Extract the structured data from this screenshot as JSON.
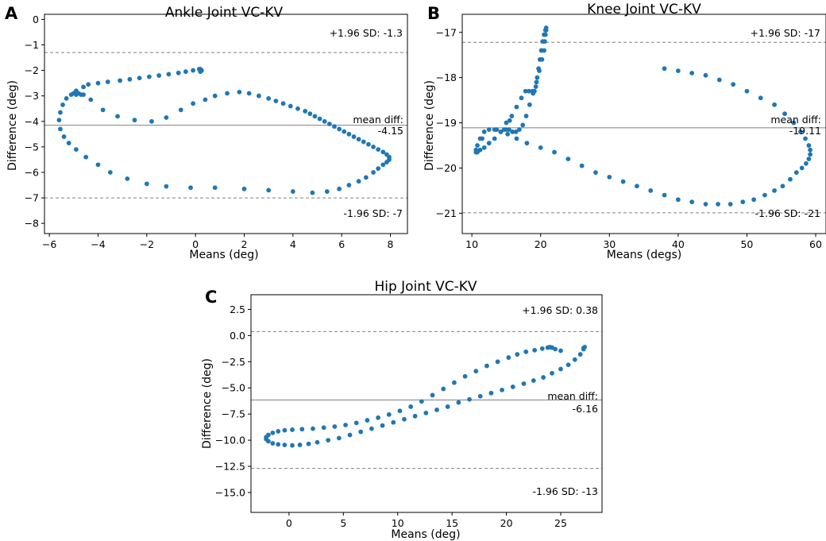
{
  "chart_data": [
    {
      "type": "scatter",
      "panel_label": "A",
      "title": "Ankle Joint VC-KV",
      "xlabel": "Means (deg)",
      "ylabel": "Difference (deg)",
      "xlim": [
        -6.2,
        8.7
      ],
      "ylim": [
        -8.4,
        0.2
      ],
      "xticks": [
        -6,
        -4,
        -2,
        0,
        2,
        4,
        6,
        8
      ],
      "xtick_labels": [
        "−6",
        "−4",
        "−2",
        "0",
        "2",
        "4",
        "6",
        "8"
      ],
      "yticks": [
        0,
        -1,
        -2,
        -3,
        -4,
        -5,
        -6,
        -7,
        -8
      ],
      "ytick_labels": [
        "0",
        "−1",
        "−2",
        "−3",
        "−4",
        "−5",
        "−6",
        "−7",
        "−8"
      ],
      "mean_diff": -4.15,
      "upper_sd": -1.3,
      "lower_sd": -7,
      "label_upper": "+1.96 SD: -1.3",
      "label_mean": "mean diff:",
      "label_mean_value": "-4.15",
      "label_lower": "-1.96 SD: -7",
      "x": [
        0.2,
        0.15,
        -0.1,
        -0.4,
        -0.7,
        -1.1,
        -1.5,
        -1.9,
        -2.3,
        -2.7,
        -3.1,
        -3.6,
        -4.0,
        -4.4,
        -4.6,
        -4.9,
        -5.1,
        -5.3,
        -5.45,
        -5.55,
        -5.6,
        -5.55,
        -5.4,
        -5.2,
        -4.9,
        -4.5,
        -4.0,
        -3.5,
        -2.8,
        -2.0,
        -1.2,
        -0.2,
        0.8,
        2.0,
        3.0,
        4.0,
        4.8,
        5.4,
        5.9,
        6.3,
        6.7,
        7.0,
        7.3,
        7.5,
        7.7,
        7.85,
        7.95,
        7.95,
        7.85,
        7.7,
        7.5,
        7.3,
        7.1,
        6.9,
        6.7,
        6.5,
        6.3,
        6.1,
        5.9,
        5.7,
        5.5,
        5.3,
        5.1,
        4.9,
        4.7,
        4.5,
        4.2,
        3.9,
        3.6,
        3.3,
        3.0,
        2.6,
        2.2,
        1.8,
        1.3,
        0.8,
        0.4,
        -0.1,
        -0.6,
        -1.2,
        -1.8,
        -2.5,
        -3.2,
        -3.8,
        -4.3,
        -4.6,
        -4.8,
        -5.0,
        -4.9,
        -4.7,
        0.25,
        0.2
      ],
      "y": [
        -1.95,
        -1.95,
        -2.0,
        -2.05,
        -2.1,
        -2.15,
        -2.2,
        -2.25,
        -2.3,
        -2.35,
        -2.4,
        -2.45,
        -2.5,
        -2.55,
        -2.65,
        -2.8,
        -2.95,
        -3.1,
        -3.35,
        -3.65,
        -3.95,
        -4.3,
        -4.6,
        -4.85,
        -5.1,
        -5.4,
        -5.7,
        -6.0,
        -6.25,
        -6.45,
        -6.55,
        -6.6,
        -6.6,
        -6.65,
        -6.7,
        -6.75,
        -6.8,
        -6.75,
        -6.65,
        -6.5,
        -6.35,
        -6.2,
        -6.0,
        -5.85,
        -5.7,
        -5.6,
        -5.5,
        -5.4,
        -5.3,
        -5.2,
        -5.1,
        -5.0,
        -4.9,
        -4.8,
        -4.7,
        -4.6,
        -4.5,
        -4.4,
        -4.3,
        -4.2,
        -4.1,
        -4.0,
        -3.9,
        -3.8,
        -3.7,
        -3.6,
        -3.5,
        -3.4,
        -3.3,
        -3.2,
        -3.1,
        -3.0,
        -2.9,
        -2.85,
        -2.9,
        -3.0,
        -3.15,
        -3.3,
        -3.55,
        -3.85,
        -4.0,
        -3.95,
        -3.8,
        -3.55,
        -3.15,
        -2.95,
        -2.9,
        -2.9,
        -2.95,
        -2.95,
        -2.0,
        -2.05
      ]
    },
    {
      "type": "scatter",
      "panel_label": "B",
      "title": "Knee Joint VC-KV",
      "xlabel": "Means (degs)",
      "ylabel": "Difference (deg)",
      "xlim": [
        8.6,
        61.5
      ],
      "ylim": [
        -21.45,
        -16.6
      ],
      "xticks": [
        10,
        20,
        30,
        40,
        50,
        60
      ],
      "xtick_labels": [
        "10",
        "20",
        "30",
        "40",
        "50",
        "60"
      ],
      "yticks": [
        -17,
        -18,
        -19,
        -20,
        -21
      ],
      "ytick_labels": [
        "−17",
        "−18",
        "−19",
        "−20",
        "−21"
      ],
      "mean_diff": -19.11,
      "upper_sd": -17.22,
      "lower_sd": -20.99,
      "label_upper": "+1.96 SD: -17",
      "label_mean": "mean diff:",
      "label_mean_value": "-19.11",
      "label_lower": "-1.96 SD: -21",
      "x": [
        38.0,
        40.0,
        42.0,
        44.0,
        46.0,
        48.0,
        50.0,
        52.0,
        54.0,
        55.5,
        56.8,
        57.8,
        58.5,
        59.0,
        59.2,
        59.2,
        59.0,
        58.6,
        58.0,
        57.2,
        56.3,
        55.2,
        54.0,
        52.6,
        51.0,
        49.4,
        47.6,
        45.8,
        44.0,
        42.0,
        40.0,
        38.0,
        36.0,
        34.0,
        32.0,
        30.0,
        28.0,
        26.0,
        24.0,
        22.0,
        20.0,
        18.0,
        16.5,
        15.2,
        14.2,
        13.3,
        12.5,
        11.8,
        11.2,
        10.8,
        10.6,
        10.6,
        10.8,
        11.2,
        11.8,
        12.5,
        13.3,
        14.2,
        15.0,
        15.8,
        16.5,
        17.2,
        17.8,
        18.3,
        18.8,
        19.1,
        19.3,
        19.5,
        19.7,
        19.9,
        20.1,
        20.3,
        20.5,
        20.7,
        20.8,
        20.8,
        20.7,
        20.6,
        20.5,
        20.2,
        19.8,
        19.4,
        18.9,
        18.4,
        17.9,
        17.4,
        16.9,
        16.4,
        15.9,
        15.4,
        15.0,
        14.7,
        13.6,
        11.5,
        15.5
      ],
      "y": [
        -17.8,
        -17.85,
        -17.9,
        -17.95,
        -18.05,
        -18.15,
        -18.3,
        -18.45,
        -18.6,
        -18.8,
        -19.0,
        -19.2,
        -19.35,
        -19.5,
        -19.6,
        -19.7,
        -19.8,
        -19.9,
        -20.0,
        -20.1,
        -20.25,
        -20.4,
        -20.5,
        -20.6,
        -20.7,
        -20.75,
        -20.8,
        -20.8,
        -20.8,
        -20.75,
        -20.7,
        -20.6,
        -20.5,
        -20.4,
        -20.3,
        -20.2,
        -20.1,
        -19.95,
        -19.8,
        -19.65,
        -19.55,
        -19.45,
        -19.35,
        -19.25,
        -19.2,
        -19.15,
        -19.15,
        -19.2,
        -19.35,
        -19.5,
        -19.6,
        -19.65,
        -19.65,
        -19.6,
        -19.55,
        -19.45,
        -19.35,
        -19.2,
        -19.0,
        -18.85,
        -18.65,
        -18.45,
        -18.3,
        -18.3,
        -18.3,
        -18.3,
        -18.2,
        -18.0,
        -17.8,
        -17.6,
        -17.4,
        -17.2,
        -17.05,
        -16.95,
        -16.9,
        -16.95,
        -17.05,
        -17.2,
        -17.4,
        -17.6,
        -17.85,
        -18.1,
        -18.35,
        -18.6,
        -18.85,
        -19.05,
        -19.15,
        -19.2,
        -19.2,
        -19.15,
        -19.15,
        -19.15,
        -19.15,
        -19.35,
        -18.95
      ]
    },
    {
      "type": "scatter",
      "panel_label": "C",
      "title": "Hip Joint VC-KV",
      "xlabel": "Means (deg)",
      "ylabel": "Difference (deg)",
      "xlim": [
        -3.5,
        28.8
      ],
      "ylim": [
        -16.9,
        3.9
      ],
      "xticks": [
        0,
        5,
        10,
        15,
        20,
        25
      ],
      "xtick_labels": [
        "0",
        "5",
        "10",
        "15",
        "20",
        "25"
      ],
      "yticks": [
        2.5,
        0.0,
        -2.5,
        -5.0,
        -7.5,
        -10.0,
        -12.5,
        -15.0
      ],
      "ytick_labels": [
        "2.5",
        "0.0",
        "−2.5",
        "−5.0",
        "−7.5",
        "−10.0",
        "−12.5",
        "−15.0"
      ],
      "mean_diff": -6.16,
      "upper_sd": 0.38,
      "lower_sd": -12.7,
      "label_upper": "+1.96 SD: 0.38",
      "label_mean": "mean diff:",
      "label_mean_value": "-6.16",
      "label_lower": "-1.96 SD: -13",
      "x": [
        27.1,
        26.8,
        26.3,
        25.7,
        25.0,
        24.2,
        23.4,
        22.5,
        21.6,
        20.6,
        19.6,
        18.6,
        17.6,
        16.6,
        15.6,
        14.6,
        13.6,
        12.6,
        11.6,
        10.6,
        9.6,
        8.6,
        7.6,
        6.6,
        5.6,
        4.6,
        3.6,
        2.6,
        1.8,
        1.0,
        0.3,
        -0.4,
        -1.0,
        -1.5,
        -1.9,
        -2.1,
        -2.1,
        -1.9,
        -1.5,
        -1.0,
        -0.4,
        0.3,
        1.2,
        2.2,
        3.2,
        4.2,
        5.2,
        6.2,
        7.2,
        8.2,
        9.2,
        10.2,
        11.2,
        12.2,
        13.2,
        14.2,
        15.2,
        16.2,
        17.2,
        18.2,
        19.2,
        20.2,
        21.0,
        21.8,
        22.6,
        23.3,
        23.8,
        24.0,
        24.2,
        24.5,
        25.0,
        27.2,
        27.1
      ],
      "y": [
        -1.3,
        -1.8,
        -2.3,
        -2.8,
        -3.2,
        -3.6,
        -4.0,
        -4.3,
        -4.6,
        -4.9,
        -5.2,
        -5.5,
        -5.8,
        -6.1,
        -6.4,
        -6.8,
        -7.1,
        -7.4,
        -7.7,
        -8.0,
        -8.3,
        -8.6,
        -8.9,
        -9.2,
        -9.5,
        -9.8,
        -10.0,
        -10.2,
        -10.35,
        -10.45,
        -10.5,
        -10.45,
        -10.4,
        -10.3,
        -10.1,
        -9.9,
        -9.7,
        -9.5,
        -9.3,
        -9.15,
        -9.05,
        -9.0,
        -8.95,
        -8.9,
        -8.8,
        -8.7,
        -8.55,
        -8.35,
        -8.1,
        -7.85,
        -7.55,
        -7.2,
        -6.8,
        -6.3,
        -5.7,
        -5.1,
        -4.5,
        -3.9,
        -3.4,
        -2.9,
        -2.5,
        -2.1,
        -1.8,
        -1.55,
        -1.4,
        -1.25,
        -1.15,
        -1.1,
        -1.15,
        -1.3,
        -1.45,
        -1.1,
        -1.2
      ]
    }
  ]
}
